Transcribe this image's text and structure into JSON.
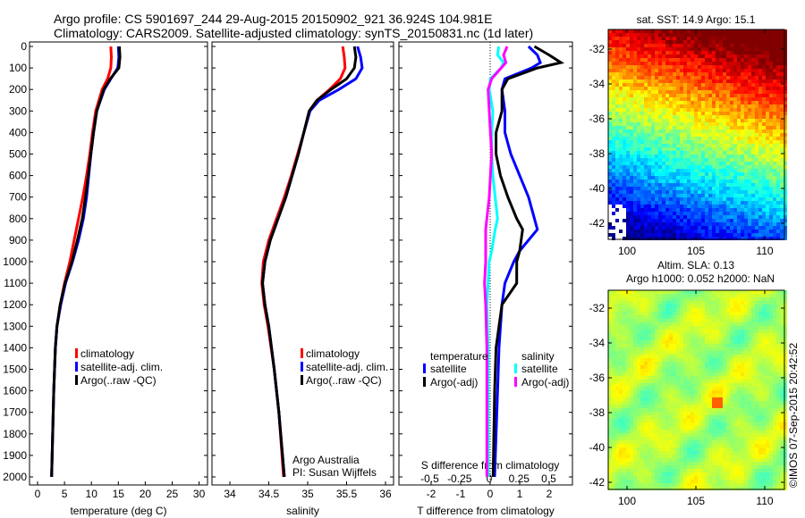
{
  "header": {
    "title1": "Argo profile: CS 5901697_244 29-Aug-2015 20150902_921 36.924S 104.981E",
    "title2": "Climatology: CARS2009. Satellite-adjusted climatology: synTS_20150831.nc (1d later)"
  },
  "colors": {
    "climatology": "#ff0000",
    "satellite": "#0000ff",
    "argo": "#000000",
    "s_satellite": "#00ffff",
    "s_argo": "#ff00ff"
  },
  "chart_data": [
    {
      "type": "line",
      "name": "temperature",
      "xlabel": "temperature (deg C)",
      "xlim": [
        -1.5,
        31.5
      ],
      "ylim": [
        2050,
        0
      ],
      "xticks": [
        "0",
        "5",
        "10",
        "15",
        "20",
        "25",
        "30"
      ],
      "xtick_values": [
        0,
        5,
        10,
        15,
        20,
        25,
        30
      ],
      "yticks": [
        0,
        100,
        200,
        300,
        400,
        500,
        600,
        700,
        800,
        900,
        1000,
        1100,
        1200,
        1300,
        1400,
        1500,
        1600,
        1700,
        1800,
        1900,
        2000
      ],
      "legend": [
        "climatology",
        "satellite-adj. clim.",
        "Argo(..raw -QC)"
      ],
      "depth": [
        0,
        50,
        100,
        150,
        200,
        300,
        400,
        500,
        600,
        700,
        800,
        900,
        1000,
        1100,
        1200,
        1300,
        1400,
        1600,
        1800,
        2000
      ],
      "series": [
        {
          "name": "climatology",
          "color": "#ff0000",
          "values": [
            13.6,
            13.7,
            13.6,
            13.0,
            12.0,
            10.8,
            10.2,
            9.7,
            9.1,
            8.4,
            7.6,
            6.8,
            6.0,
            5.0,
            4.2,
            3.6,
            3.3,
            3.0,
            2.8,
            2.6
          ]
        },
        {
          "name": "satellite-adj. clim.",
          "color": "#0000ff",
          "values": [
            15.0,
            15.1,
            14.9,
            13.6,
            12.4,
            11.0,
            10.4,
            9.9,
            9.5,
            9.1,
            8.5,
            7.6,
            6.5,
            5.2,
            4.3,
            3.6,
            3.3,
            3.0,
            2.8,
            2.6
          ]
        },
        {
          "name": "Argo(..raw -QC)",
          "color": "#000000",
          "values": [
            15.2,
            15.3,
            15.1,
            13.5,
            12.3,
            11.0,
            10.4,
            9.9,
            9.4,
            8.9,
            8.3,
            7.4,
            6.4,
            5.1,
            4.2,
            3.6,
            3.3,
            3.0,
            2.8,
            2.6
          ]
        }
      ]
    },
    {
      "type": "line",
      "name": "salinity",
      "xlabel": "salinity",
      "xlim": [
        33.8,
        36.1
      ],
      "ylim": [
        2050,
        0
      ],
      "xticks": [
        "34",
        "34.5",
        "35",
        "35.5",
        "36"
      ],
      "xtick_values": [
        34,
        34.5,
        35,
        35.5,
        36
      ],
      "legend": [
        "climatology",
        "satellite-adj. clim.",
        "Argo(..raw -QC)"
      ],
      "annotation": [
        "Argo Australia",
        "PI: Susan Wijffels"
      ],
      "depth": [
        0,
        50,
        100,
        150,
        200,
        250,
        300,
        400,
        500,
        600,
        700,
        800,
        900,
        1000,
        1100,
        1200,
        1300,
        1500,
        1700,
        2000
      ],
      "series": [
        {
          "name": "climatology",
          "color": "#ff0000",
          "values": [
            35.45,
            35.47,
            35.48,
            35.42,
            35.28,
            35.12,
            35.02,
            34.95,
            34.87,
            34.79,
            34.7,
            34.6,
            34.5,
            34.43,
            34.41,
            34.44,
            34.49,
            34.57,
            34.63,
            34.69
          ]
        },
        {
          "name": "satellite-adj. clim.",
          "color": "#0000ff",
          "values": [
            35.64,
            35.68,
            35.7,
            35.62,
            35.4,
            35.15,
            35.03,
            34.95,
            34.88,
            34.8,
            34.72,
            34.62,
            34.52,
            34.45,
            34.42,
            34.45,
            34.5,
            34.57,
            34.63,
            34.7
          ]
        },
        {
          "name": "Argo(..raw -QC)",
          "color": "#000000",
          "values": [
            35.6,
            35.62,
            35.6,
            35.5,
            35.3,
            35.12,
            35.02,
            34.95,
            34.88,
            34.8,
            34.72,
            34.62,
            34.52,
            34.45,
            34.42,
            34.45,
            34.5,
            34.57,
            34.63,
            34.7
          ]
        }
      ]
    },
    {
      "type": "line",
      "name": "differences",
      "xlabel": "T difference from climatology",
      "x2label": "S difference from climatology",
      "xlim": [
        -3,
        3
      ],
      "ylim": [
        2050,
        0
      ],
      "xticks": [
        "-2",
        "-1",
        "0",
        "1",
        "2"
      ],
      "xtick_values": [
        -2,
        -1,
        0,
        1,
        2
      ],
      "x2ticks": [
        "-0.5",
        "-0.25",
        "0",
        "0.25",
        "0.5"
      ],
      "x2tick_values": [
        -0.5,
        -0.25,
        0,
        0.25,
        0.5
      ],
      "legend": {
        "temperature": "temperature",
        "salinity": "salinity",
        "t_sat": "satellite",
        "t_argo": "Argo(-adj)",
        "s_sat": "satellite",
        "s_argo": "Argo(-adj)"
      },
      "depth": [
        0,
        40,
        75,
        100,
        150,
        200,
        300,
        400,
        500,
        600,
        700,
        800,
        850,
        950,
        1000,
        1100,
        1200,
        1400,
        1600,
        2000
      ],
      "series": [
        {
          "name": "T satellite",
          "color": "#0000ff",
          "units": "T",
          "values": [
            1.3,
            1.6,
            1.7,
            1.4,
            0.5,
            0.4,
            0.5,
            0.5,
            0.7,
            1.0,
            1.3,
            1.5,
            1.6,
            1.0,
            0.8,
            0.5,
            0.4,
            0.3,
            0.25,
            0.15
          ]
        },
        {
          "name": "T Argo(-adj)",
          "color": "#000000",
          "units": "T",
          "values": [
            1.5,
            2.0,
            2.4,
            1.6,
            0.6,
            0.4,
            0.4,
            0.2,
            0.2,
            0.35,
            0.6,
            0.9,
            1.1,
            1.0,
            0.9,
            0.9,
            0.4,
            0.2,
            0.15,
            0.1
          ]
        },
        {
          "name": "S satellite",
          "color": "#00ffff",
          "units": "S",
          "values": [
            0.08,
            0.07,
            0.12,
            0.1,
            0.01,
            0.0,
            0.03,
            0.02,
            0.02,
            0.03,
            0.05,
            0.07,
            0.05,
            0.02,
            0.0,
            -0.01,
            -0.02,
            -0.01,
            -0.01,
            -0.01
          ]
        },
        {
          "name": "S Argo(-adj)",
          "color": "#ff00ff",
          "units": "S",
          "values": [
            0.15,
            0.12,
            0.14,
            0.1,
            0.02,
            -0.01,
            0.0,
            0.01,
            0.02,
            0.01,
            0.0,
            -0.02,
            -0.03,
            -0.03,
            -0.03,
            -0.04,
            -0.03,
            -0.02,
            -0.02,
            -0.02
          ]
        }
      ]
    },
    {
      "type": "heatmap",
      "name": "sst-map",
      "title": "sat. SST: 14.9 Argo: 15.1",
      "xticks": [
        "100",
        "105",
        "110"
      ],
      "xtick_values": [
        100,
        105,
        110
      ],
      "yticks": [
        "-32",
        "-34",
        "-36",
        "-38",
        "-40",
        "-42"
      ],
      "ytick_values": [
        -32,
        -34,
        -36,
        -38,
        -40,
        -42
      ],
      "xlim": [
        98.7,
        111.4
      ],
      "ylim": [
        -42.8,
        -31.9
      ]
    },
    {
      "type": "heatmap",
      "name": "sla-map",
      "title": "Altim. SLA: 0.13",
      "subtitle": "Argo h1000: 0.052 h2000: NaN",
      "xticks": [
        "100",
        "105",
        "110"
      ],
      "xtick_values": [
        100,
        105,
        110
      ],
      "yticks": [
        "-32",
        "-34",
        "-36",
        "-38",
        "-40",
        "-42"
      ],
      "ytick_values": [
        -32,
        -34,
        -36,
        -38,
        -40,
        -42
      ],
      "xlim": [
        98.7,
        111.4
      ],
      "ylim": [
        -42.8,
        -31.9
      ]
    }
  ],
  "footer": {
    "stamp": "©IMOS 07-Sep-2015 20:42:52"
  }
}
